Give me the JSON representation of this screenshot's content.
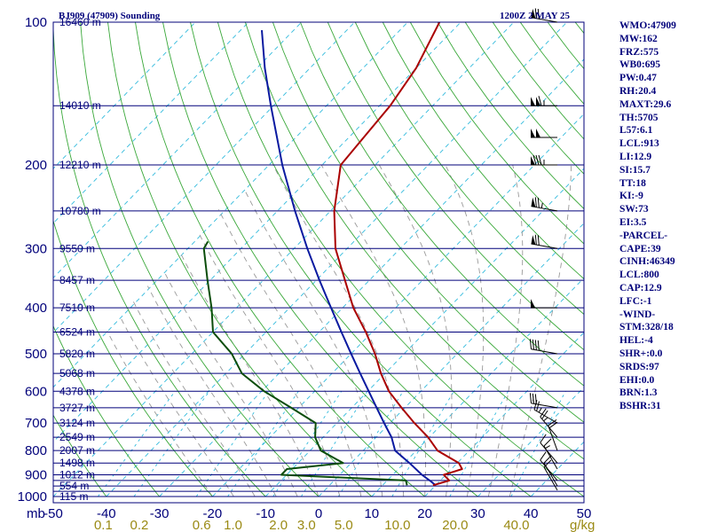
{
  "header": {
    "station": "BJ909 (47909) Sounding",
    "time": "1200Z  2 MAY 25"
  },
  "colors": {
    "frame": "#00007a",
    "isotherm": "#33bbdd",
    "dry_adiabat": "#3aa83a",
    "moist_adiabat": "#999999",
    "temperature": "#aa0000",
    "dewpoint": "#0b4d0b",
    "parcel": "#0a1aa0",
    "mixing_label": "#9a8a14"
  },
  "chart_data": {
    "type": "skew-t",
    "x_unit": "mb",
    "mixing_unit": "g/kg",
    "xlim": [
      -50,
      50
    ],
    "pressure_range": [
      1000,
      100
    ],
    "isobars": [
      100,
      150,
      200,
      250,
      300,
      350,
      400,
      450,
      500,
      550,
      600,
      650,
      700,
      750,
      800,
      850,
      900,
      925,
      950,
      975,
      1000
    ],
    "pressure_labels": [
      "100",
      "200",
      "300",
      "400",
      "500",
      "600",
      "700",
      "800",
      "900",
      "1000"
    ],
    "temperature_ticks": [
      "-50",
      "-40",
      "-30",
      "-20",
      "-10",
      "0",
      "10",
      "20",
      "30",
      "40",
      "50"
    ],
    "mixing_ratio_labels": [
      "0.1",
      "0.2",
      "0.6",
      "1.0",
      "2.0",
      "3.0",
      "5.0",
      "10.0",
      "20.0",
      "40.0"
    ],
    "height_labels": [
      {
        "p": 100,
        "text": "16460 m"
      },
      {
        "p": 150,
        "text": "14010 m"
      },
      {
        "p": 200,
        "text": "12210 m"
      },
      {
        "p": 250,
        "text": "10780 m"
      },
      {
        "p": 300,
        "text": "9550 m"
      },
      {
        "p": 350,
        "text": "8457 m"
      },
      {
        "p": 400,
        "text": "7510 m"
      },
      {
        "p": 450,
        "text": "6524 m"
      },
      {
        "p": 500,
        "text": "5820 m"
      },
      {
        "p": 550,
        "text": "5068 m"
      },
      {
        "p": 600,
        "text": "4378 m"
      },
      {
        "p": 650,
        "text": "3727 m"
      },
      {
        "p": 700,
        "text": "3124 m"
      },
      {
        "p": 750,
        "text": "2549 m"
      },
      {
        "p": 800,
        "text": "2007 m"
      },
      {
        "p": 850,
        "text": "1498 m"
      },
      {
        "p": 900,
        "text": "1012 m"
      },
      {
        "p": 950,
        "text": "554 m"
      },
      {
        "p": 1000,
        "text": "115 m"
      }
    ],
    "temperature_profile": [
      {
        "p": 947,
        "t": 19.5
      },
      {
        "p": 925,
        "t": 21.7
      },
      {
        "p": 900,
        "t": 19.6
      },
      {
        "p": 875,
        "t": 22.0
      },
      {
        "p": 850,
        "t": 20.3
      },
      {
        "p": 800,
        "t": 14.0
      },
      {
        "p": 750,
        "t": 9.8
      },
      {
        "p": 700,
        "t": 4.6
      },
      {
        "p": 650,
        "t": -0.6
      },
      {
        "p": 600,
        "t": -6.0
      },
      {
        "p": 550,
        "t": -10.8
      },
      {
        "p": 500,
        "t": -15.5
      },
      {
        "p": 450,
        "t": -21.2
      },
      {
        "p": 400,
        "t": -28.0
      },
      {
        "p": 350,
        "t": -34.6
      },
      {
        "p": 300,
        "t": -42.2
      },
      {
        "p": 250,
        "t": -49.3
      },
      {
        "p": 200,
        "t": -56.5
      },
      {
        "p": 175,
        "t": -57.2
      },
      {
        "p": 150,
        "t": -58.0
      },
      {
        "p": 125,
        "t": -60.0
      },
      {
        "p": 100,
        "t": -64.0
      }
    ],
    "dewpoint_profile": [
      {
        "p": 947,
        "td": 14.6
      },
      {
        "p": 925,
        "td": 13.5
      },
      {
        "p": 900,
        "td": -11.0
      },
      {
        "p": 875,
        "td": -11.0
      },
      {
        "p": 850,
        "td": -1.5
      },
      {
        "p": 800,
        "td": -8.0
      },
      {
        "p": 750,
        "td": -11.5
      },
      {
        "p": 700,
        "td": -14.0
      },
      {
        "p": 650,
        "td": -21.4
      },
      {
        "p": 600,
        "td": -29.5
      },
      {
        "p": 550,
        "td": -37.0
      },
      {
        "p": 500,
        "td": -42.5
      },
      {
        "p": 450,
        "td": -50.0
      },
      {
        "p": 400,
        "td": -54.7
      },
      {
        "p": 350,
        "td": -60.5
      },
      {
        "p": 300,
        "td": -67.0
      },
      {
        "p": 290,
        "td": -67.5
      }
    ],
    "parcel_profile": [
      {
        "p": 947,
        "t": 20.0
      },
      {
        "p": 925,
        "t": 18.0
      },
      {
        "p": 900,
        "t": 15.5
      },
      {
        "p": 850,
        "t": 11.0
      },
      {
        "p": 800,
        "t": 6.0
      },
      {
        "p": 750,
        "t": 2.9
      },
      {
        "p": 700,
        "t": -1.1
      },
      {
        "p": 650,
        "t": -5.3
      },
      {
        "p": 600,
        "t": -9.8
      },
      {
        "p": 550,
        "t": -14.7
      },
      {
        "p": 500,
        "t": -20.0
      },
      {
        "p": 450,
        "t": -25.8
      },
      {
        "p": 400,
        "t": -32.2
      },
      {
        "p": 350,
        "t": -39.4
      },
      {
        "p": 300,
        "t": -47.5
      },
      {
        "p": 250,
        "t": -56.7
      },
      {
        "p": 200,
        "t": -67.5
      },
      {
        "p": 150,
        "t": -80.5
      },
      {
        "p": 125,
        "t": -88.5
      },
      {
        "p": 104,
        "t": -96.0
      }
    ],
    "wind_barbs": [
      {
        "p": 970,
        "dir": 330,
        "spd": 10
      },
      {
        "p": 950,
        "dir": 330,
        "spd": 12
      },
      {
        "p": 925,
        "dir": 320,
        "spd": 10
      },
      {
        "p": 875,
        "dir": 330,
        "spd": 15
      },
      {
        "p": 850,
        "dir": 320,
        "spd": 10
      },
      {
        "p": 800,
        "dir": 340,
        "spd": 20
      },
      {
        "p": 750,
        "dir": 320,
        "spd": 25
      },
      {
        "p": 700,
        "dir": 300,
        "spd": 25
      },
      {
        "p": 650,
        "dir": 280,
        "spd": 30
      },
      {
        "p": 500,
        "dir": 280,
        "spd": 40
      },
      {
        "p": 400,
        "dir": 270,
        "spd": 50
      },
      {
        "p": 300,
        "dir": 280,
        "spd": 70
      },
      {
        "p": 250,
        "dir": 280,
        "spd": 75
      },
      {
        "p": 200,
        "dir": 270,
        "spd": 85
      },
      {
        "p": 175,
        "dir": 270,
        "spd": 100
      },
      {
        "p": 150,
        "dir": 270,
        "spd": 115
      },
      {
        "p": 100,
        "dir": 280,
        "spd": 70
      }
    ]
  },
  "indices": [
    "WMO:47909",
    "MW:162",
    "FRZ:575",
    "WB0:695",
    "PW:0.47",
    "RH:20.4",
    "MAXT:29.6",
    "TH:5705",
    "L57:6.1",
    "LCL:913",
    "LI:12.9",
    "SI:15.7",
    "TT:18",
    "KI:-9",
    "SW:73",
    "EI:3.5",
    "-PARCEL-",
    "CAPE:39",
    "CINH:46349",
    "LCL:800",
    "CAP:12.9",
    "LFC:-1",
    "-WIND-",
    "STM:328/18",
    "HEL:-4",
    "SHR+:0.0",
    "SRDS:97",
    "EHI:0.0",
    "BRN:1.3",
    "BSHR:31"
  ]
}
